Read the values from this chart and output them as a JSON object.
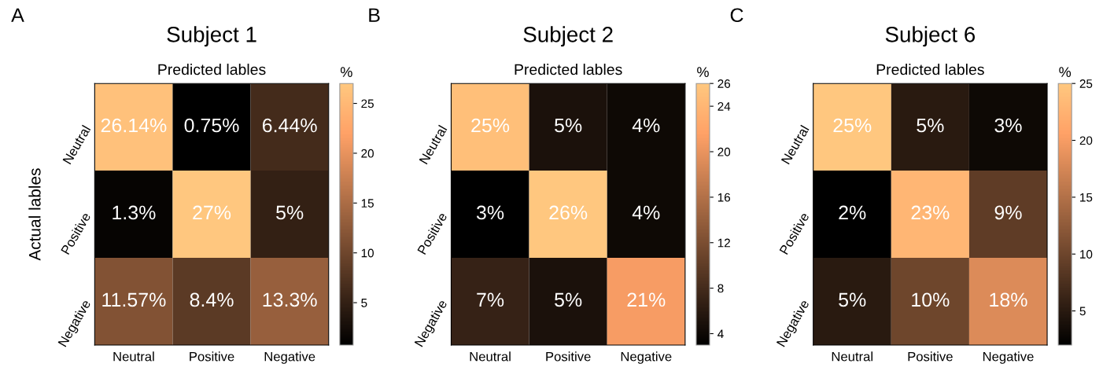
{
  "chart_data": [
    {
      "type": "heatmap",
      "title": "Subject 1",
      "xlabel": "Predicted lables",
      "ylabel": "Actual lables",
      "clabel": "%",
      "annotations": [
        "A"
      ],
      "categories": [
        "Neutral",
        "Positive",
        "Negative"
      ],
      "y_categories": [
        "Neutral",
        "Positive",
        "Negative"
      ],
      "cells": [
        [
          26.14,
          0.75,
          6.44
        ],
        [
          1.3,
          27,
          5
        ],
        [
          11.57,
          8.4,
          13.3
        ]
      ],
      "cell_labels": [
        [
          "26.14%",
          "0.75%",
          "6.44%"
        ],
        [
          "1.3%",
          "27%",
          "5%"
        ],
        [
          "11.57%",
          "8.4%",
          "13.3%"
        ]
      ],
      "clim": [
        0.75,
        27
      ],
      "cticks": [
        5,
        10,
        15,
        20,
        25
      ]
    },
    {
      "type": "heatmap",
      "title": "Subject 2",
      "xlabel": "Predicted lables",
      "clabel": "%",
      "annotations": [
        "B"
      ],
      "categories": [
        "Neutral",
        "Positive",
        "Negative"
      ],
      "y_categories": [
        "Neutral",
        "Positive",
        "Negative"
      ],
      "cells": [
        [
          25,
          5,
          4
        ],
        [
          3,
          26,
          4
        ],
        [
          7,
          5,
          21
        ]
      ],
      "cell_labels": [
        [
          "25%",
          "5%",
          "4%"
        ],
        [
          "3%",
          "26%",
          "4%"
        ],
        [
          "7%",
          "5%",
          "21%"
        ]
      ],
      "clim": [
        3,
        26
      ],
      "cticks": [
        4,
        8,
        12,
        16,
        20,
        24,
        26
      ]
    },
    {
      "type": "heatmap",
      "title": "Subject 6",
      "xlabel": "Predicted lables",
      "clabel": "%",
      "annotations": [
        "C"
      ],
      "categories": [
        "Neutral",
        "Positive",
        "Negative"
      ],
      "y_categories": [
        "Neutral",
        "Positive",
        "Negative"
      ],
      "cells": [
        [
          25,
          5,
          3
        ],
        [
          2,
          23,
          9
        ],
        [
          5,
          10,
          18
        ]
      ],
      "cell_labels": [
        [
          "25%",
          "5%",
          "3%"
        ],
        [
          "2%",
          "23%",
          "9%"
        ],
        [
          "5%",
          "10%",
          "18%"
        ]
      ],
      "clim": [
        2,
        25
      ],
      "cticks": [
        5,
        10,
        15,
        20,
        25
      ]
    }
  ]
}
